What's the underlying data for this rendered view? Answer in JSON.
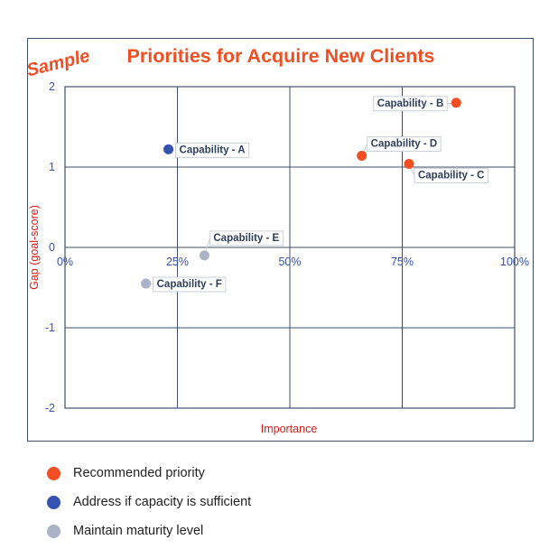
{
  "watermark": "Sample",
  "colors": {
    "accent": "#f04e23",
    "axis_text": "#3552b0",
    "frame": "#3f4f6b",
    "grid": "#3f4f6b",
    "label_text": "#2f3e5a",
    "recommended": "#f04e23",
    "address": "#3552b0",
    "maintain": "#a9b4c6"
  },
  "legend": [
    {
      "label": "Recommended priority",
      "color": "#f04e23"
    },
    {
      "label": "Address if capacity is sufficient",
      "color": "#3552b0"
    },
    {
      "label": "Maintain maturity level",
      "color": "#a9b4c6"
    }
  ],
  "chart_data": {
    "type": "scatter",
    "title": "Priorities for Acquire New Clients",
    "xlabel": "Importance",
    "ylabel": "Gap (goal-score)",
    "xlim": [
      0,
      100
    ],
    "ylim": [
      -2,
      2
    ],
    "x_ticks": [
      "0%",
      "25%",
      "50%",
      "75%",
      "100%"
    ],
    "y_ticks": [
      "2",
      "1",
      "0",
      "-1",
      "-2"
    ],
    "grid": true,
    "legend_position": "bottom",
    "points": [
      {
        "label": "Capability - A",
        "x": 23,
        "y": 1.22,
        "group": "address"
      },
      {
        "label": "Capability - B",
        "x": 87,
        "y": 1.8,
        "group": "recommended"
      },
      {
        "label": "Capability - C",
        "x": 76.5,
        "y": 1.04,
        "group": "recommended"
      },
      {
        "label": "Capability - D",
        "x": 66,
        "y": 1.14,
        "group": "recommended"
      },
      {
        "label": "Capability - E",
        "x": 31,
        "y": -0.1,
        "group": "maintain"
      },
      {
        "label": "Capability - F",
        "x": 18,
        "y": -0.45,
        "group": "maintain"
      }
    ]
  }
}
